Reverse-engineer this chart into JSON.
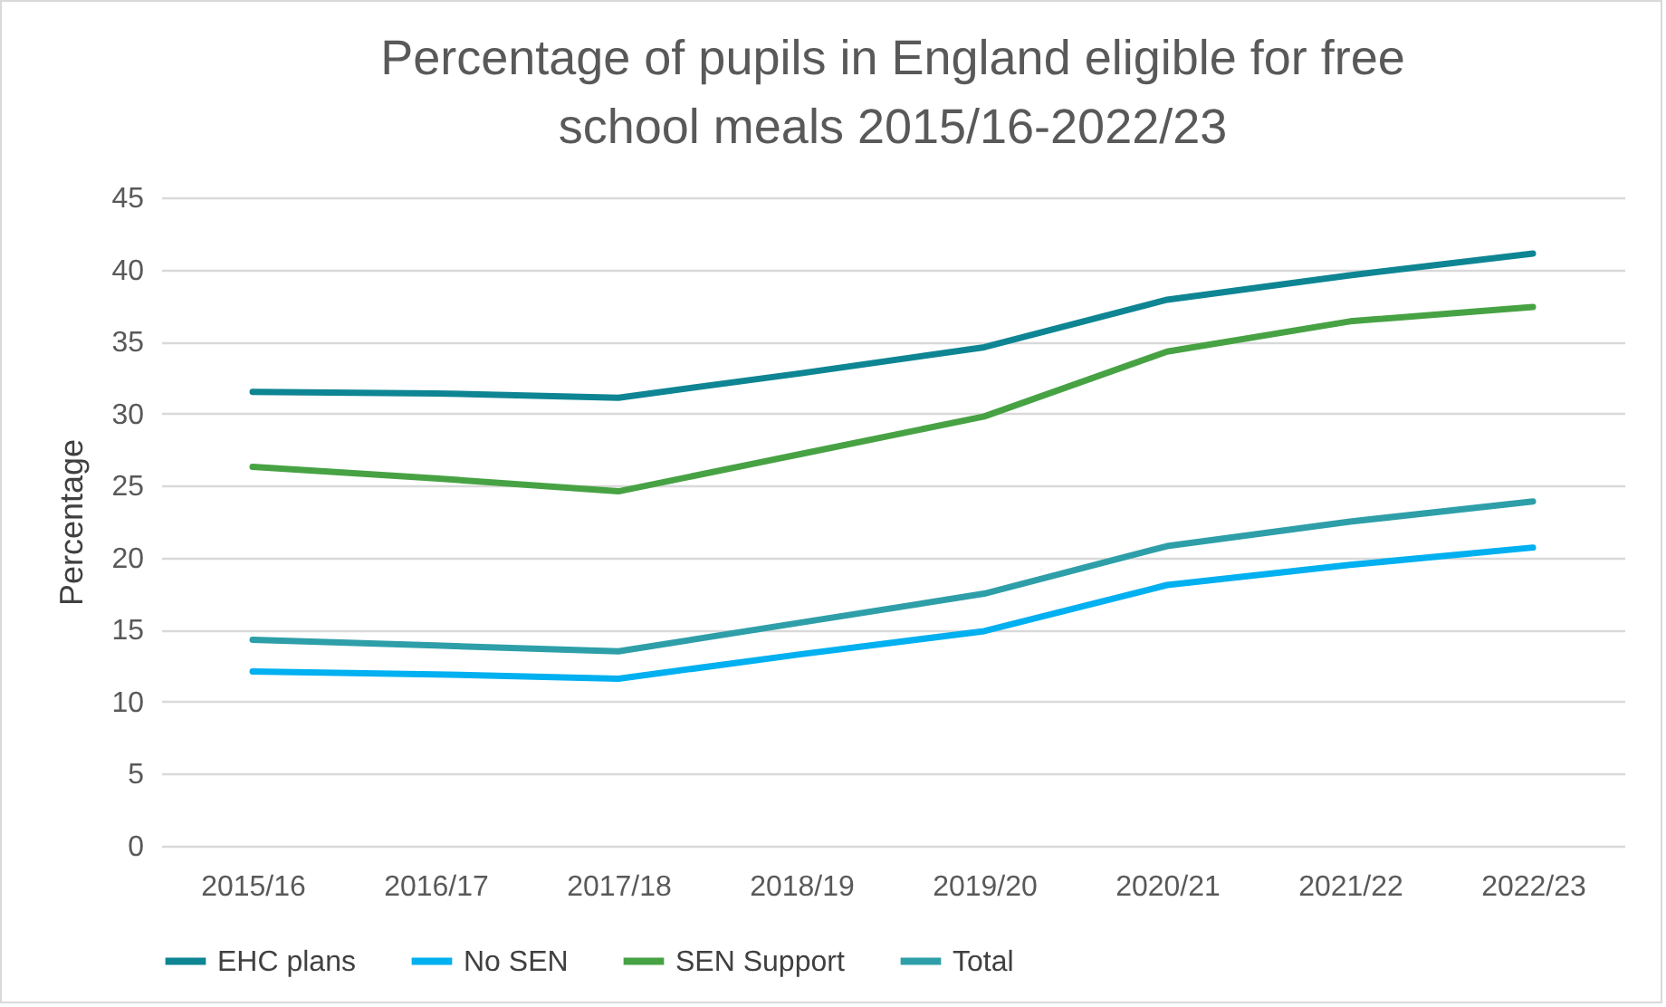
{
  "chart_data": {
    "type": "line",
    "title": "Percentage of pupils in England eligible for free school meals 2015/16-2022/23",
    "ylabel": "Percentage",
    "categories": [
      "2015/16",
      "2016/17",
      "2017/18",
      "2018/19",
      "2019/20",
      "2020/21",
      "2021/22",
      "2022/23"
    ],
    "series": [
      {
        "name": "EHC plans",
        "color": "#0e8593",
        "values": [
          31.5,
          31.4,
          31.1,
          32.8,
          34.6,
          37.9,
          39.6,
          41.1
        ]
      },
      {
        "name": "No SEN",
        "color": "#00b0f0",
        "values": [
          12.1,
          11.9,
          11.6,
          13.3,
          14.9,
          18.1,
          19.5,
          20.7
        ]
      },
      {
        "name": "SEN Support",
        "color": "#47a244",
        "values": [
          26.3,
          25.5,
          24.6,
          27.2,
          29.8,
          34.3,
          36.4,
          37.4
        ]
      },
      {
        "name": "Total",
        "color": "#2e9fa8",
        "values": [
          14.3,
          13.9,
          13.5,
          15.5,
          17.5,
          20.8,
          22.5,
          23.9
        ]
      }
    ],
    "ylim": [
      0,
      45
    ],
    "yticks": [
      0,
      5,
      10,
      15,
      20,
      25,
      30,
      35,
      40,
      45
    ],
    "grid": "y",
    "legend": "bottom",
    "marker": "none",
    "line_style": "solid"
  }
}
